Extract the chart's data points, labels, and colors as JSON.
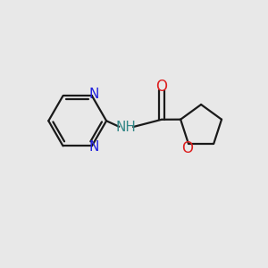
{
  "background_color": "#e8e8e8",
  "bond_color": "#1a1a1a",
  "n_color": "#2020dd",
  "o_color": "#dd2020",
  "nh_color": "#338888",
  "line_width": 1.6,
  "font_size_atoms": 11,
  "figsize": [
    3.0,
    3.0
  ],
  "dpi": 100,
  "xlim": [
    0,
    10
  ],
  "ylim": [
    0,
    10
  ]
}
